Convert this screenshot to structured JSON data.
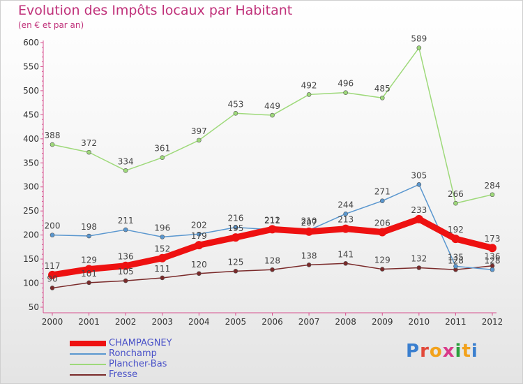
{
  "header": {
    "title": "Evolution des Impôts locaux par Habitant",
    "subtitle": "(en € et par an)"
  },
  "brand": {
    "text": "Proxiti",
    "letter_colors": [
      "#3a7fcf",
      "#e2493a",
      "#f2a21c",
      "#d93a8a",
      "#2b9f3c",
      "#f2a21c",
      "#3a7fcf"
    ]
  },
  "chart_data": {
    "type": "line",
    "x": [
      "2000",
      "2001",
      "2002",
      "2003",
      "2004",
      "2005",
      "2006",
      "2007",
      "2008",
      "2009",
      "2010",
      "2011",
      "2012"
    ],
    "ylim": [
      50,
      600
    ],
    "yticks": [
      50,
      100,
      150,
      200,
      250,
      300,
      350,
      400,
      450,
      500,
      550,
      600
    ],
    "grid": false,
    "legend_position": "bottom-left",
    "series": [
      {
        "name": "CHAMPAGNEY",
        "color": "#ee1111",
        "values": [
          117,
          129,
          136,
          152,
          179,
          195,
          212,
          207,
          213,
          206,
          233,
          192,
          173
        ],
        "labels": [
          "117",
          "129",
          "136",
          "152",
          "179",
          "195",
          "212",
          "207",
          "213",
          "206",
          "233",
          "192",
          "173"
        ]
      },
      {
        "name": "Ronchamp",
        "color": "#5a97cf",
        "values": [
          200,
          198,
          211,
          196,
          202,
          216,
          211,
          210,
          244,
          271,
          305,
          135,
          128
        ],
        "labels": [
          "200",
          "198",
          "211",
          "196",
          "202",
          "216",
          "211",
          "210",
          "244",
          "271",
          "305",
          "135",
          "128"
        ]
      },
      {
        "name": "Plancher-Bas",
        "color": "#9ed97a",
        "values": [
          388,
          372,
          334,
          361,
          397,
          453,
          449,
          492,
          496,
          485,
          589,
          266,
          284
        ],
        "labels": [
          "388",
          "372",
          "334",
          "361",
          "397",
          "453",
          "449",
          "492",
          "496",
          "485",
          "589",
          "266",
          "284"
        ]
      },
      {
        "name": "Fresse",
        "color": "#7a2a2a",
        "values": [
          90,
          101,
          105,
          111,
          120,
          125,
          128,
          138,
          141,
          129,
          132,
          128,
          136
        ],
        "labels": [
          "90",
          "101",
          "105",
          "111",
          "120",
          "125",
          "128",
          "138",
          "141",
          "129",
          "132",
          "128",
          "136"
        ]
      }
    ]
  }
}
